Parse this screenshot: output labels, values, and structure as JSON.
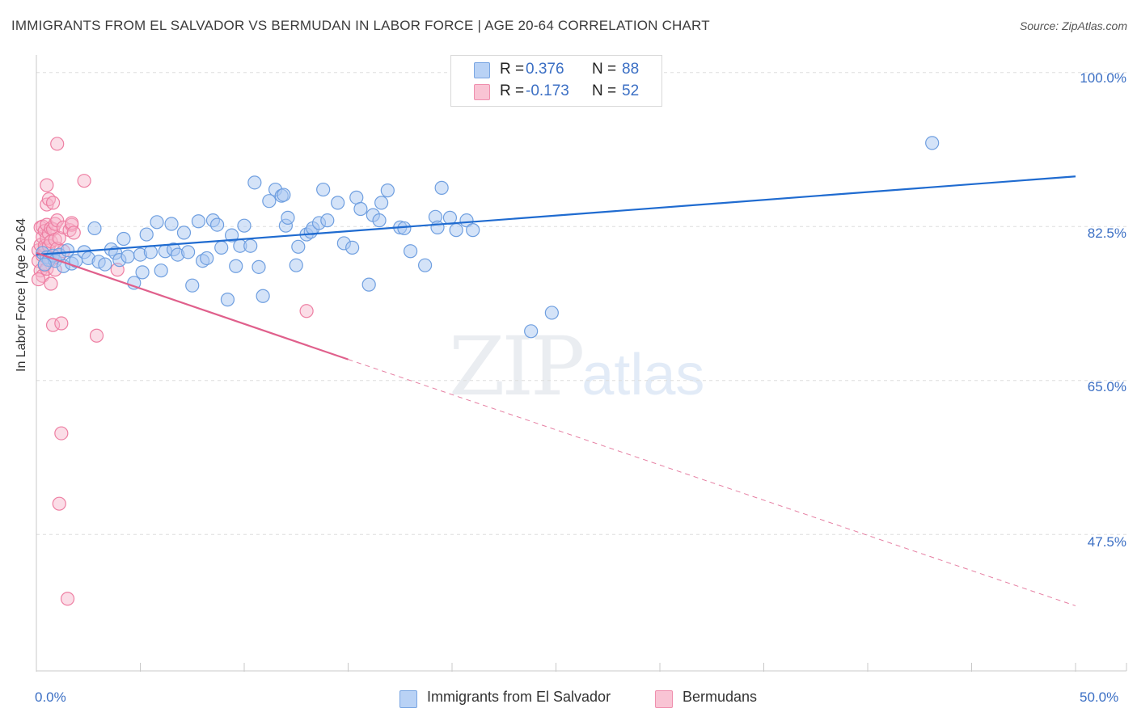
{
  "title": "IMMIGRANTS FROM EL SALVADOR VS BERMUDAN IN LABOR FORCE | AGE 20-64 CORRELATION CHART",
  "source": "Source: ZipAtlas.com",
  "watermark": {
    "zip": "ZIP",
    "atlas": "atlas"
  },
  "legend_top": [
    {
      "r_label": "R =",
      "r_value": "0.376",
      "n_label": "N =",
      "n_value": "88"
    },
    {
      "r_label": "R =",
      "r_value": "-0.173",
      "n_label": "N =",
      "n_value": "52"
    }
  ],
  "legend_bottom": [
    "Immigrants from El Salvador",
    "Bermudans"
  ],
  "colors": {
    "blue_fill": "#a9c8f2",
    "blue_stroke": "#6f9fe0",
    "blue_line": "#1f6bd0",
    "pink_fill": "#f7b4c9",
    "pink_stroke": "#ee7fa3",
    "pink_line": "#e0608c",
    "tick_text": "#3b6fc4",
    "grid": "#dedede"
  },
  "chart_data": {
    "type": "scatter",
    "title": "IMMIGRANTS FROM EL SALVADOR VS BERMUDAN IN LABOR FORCE | AGE 20-64 CORRELATION CHART",
    "xlabel": "",
    "ylabel": "In Labor Force | Age 20-64",
    "xlim": [
      0,
      50
    ],
    "ylim": [
      32,
      102
    ],
    "x_tick_labels": [
      "0.0%",
      "50.0%"
    ],
    "y_ticks": [
      47.5,
      65.0,
      82.5,
      100.0
    ],
    "y_tick_labels": [
      "47.5%",
      "65.0%",
      "82.5%",
      "100.0%"
    ],
    "grid": "horizontal dashed",
    "legend_position": "bottom-center",
    "series": [
      {
        "name": "Immigrants from El Salvador",
        "color": "#a9c8f2",
        "trend": {
          "x": [
            0,
            50
          ],
          "y": [
            79.3,
            88.2
          ]
        },
        "points": [
          [
            0.3,
            79.5
          ],
          [
            0.5,
            79.0
          ],
          [
            0.6,
            78.7
          ],
          [
            0.8,
            79.2
          ],
          [
            0.9,
            78.6
          ],
          [
            1.1,
            79.3
          ],
          [
            1.3,
            78.0
          ],
          [
            1.5,
            79.8
          ],
          [
            1.7,
            78.3
          ],
          [
            1.9,
            78.6
          ],
          [
            2.3,
            79.6
          ],
          [
            2.5,
            78.9
          ],
          [
            2.8,
            82.3
          ],
          [
            3.0,
            78.5
          ],
          [
            3.3,
            78.2
          ],
          [
            3.6,
            79.9
          ],
          [
            3.8,
            79.5
          ],
          [
            4.0,
            78.7
          ],
          [
            4.2,
            81.1
          ],
          [
            4.4,
            79.1
          ],
          [
            4.7,
            76.1
          ],
          [
            5.0,
            79.3
          ],
          [
            5.1,
            77.3
          ],
          [
            5.3,
            81.6
          ],
          [
            5.5,
            79.6
          ],
          [
            5.8,
            83.0
          ],
          [
            6.0,
            77.5
          ],
          [
            6.2,
            79.7
          ],
          [
            6.5,
            82.8
          ],
          [
            6.6,
            79.9
          ],
          [
            6.8,
            79.3
          ],
          [
            7.1,
            81.8
          ],
          [
            7.3,
            79.6
          ],
          [
            7.5,
            75.8
          ],
          [
            7.8,
            83.1
          ],
          [
            8.0,
            78.6
          ],
          [
            8.2,
            78.9
          ],
          [
            8.5,
            83.2
          ],
          [
            8.7,
            82.7
          ],
          [
            8.9,
            80.1
          ],
          [
            9.2,
            74.2
          ],
          [
            9.4,
            81.5
          ],
          [
            9.6,
            78.0
          ],
          [
            9.8,
            80.3
          ],
          [
            10.0,
            82.6
          ],
          [
            10.3,
            80.3
          ],
          [
            10.5,
            87.5
          ],
          [
            10.7,
            77.9
          ],
          [
            10.9,
            74.6
          ],
          [
            11.2,
            85.4
          ],
          [
            11.5,
            86.7
          ],
          [
            11.8,
            86.0
          ],
          [
            11.9,
            86.1
          ],
          [
            12.0,
            82.6
          ],
          [
            12.1,
            83.5
          ],
          [
            12.5,
            78.1
          ],
          [
            12.6,
            80.2
          ],
          [
            13.0,
            81.6
          ],
          [
            13.2,
            81.9
          ],
          [
            13.3,
            82.3
          ],
          [
            13.6,
            82.9
          ],
          [
            13.8,
            86.7
          ],
          [
            14.0,
            83.2
          ],
          [
            14.5,
            85.2
          ],
          [
            14.8,
            80.6
          ],
          [
            15.2,
            80.1
          ],
          [
            15.4,
            85.8
          ],
          [
            15.6,
            84.5
          ],
          [
            16.0,
            75.9
          ],
          [
            16.2,
            83.8
          ],
          [
            16.5,
            83.2
          ],
          [
            16.6,
            85.2
          ],
          [
            16.9,
            86.6
          ],
          [
            17.5,
            82.4
          ],
          [
            17.7,
            82.3
          ],
          [
            18.0,
            79.7
          ],
          [
            18.7,
            78.1
          ],
          [
            19.2,
            83.6
          ],
          [
            19.3,
            82.4
          ],
          [
            19.5,
            86.9
          ],
          [
            19.9,
            83.5
          ],
          [
            20.2,
            82.1
          ],
          [
            20.7,
            83.2
          ],
          [
            21.0,
            82.1
          ],
          [
            23.8,
            70.6
          ],
          [
            24.8,
            72.7
          ],
          [
            43.1,
            92.0
          ],
          [
            0.4,
            78.2
          ]
        ]
      },
      {
        "name": "Bermudans",
        "color": "#f7b4c9",
        "trend": {
          "x": [
            0,
            15
          ],
          "y": [
            79.5,
            67.4
          ],
          "extended": {
            "x": [
              15,
              50
            ],
            "y": [
              67.4,
              39.4
            ]
          }
        },
        "points": [
          [
            0.1,
            79.8
          ],
          [
            0.1,
            78.6
          ],
          [
            0.2,
            80.4
          ],
          [
            0.2,
            77.5
          ],
          [
            0.2,
            82.4
          ],
          [
            0.3,
            79.2
          ],
          [
            0.3,
            81.3
          ],
          [
            0.3,
            76.9
          ],
          [
            0.3,
            82.5
          ],
          [
            0.4,
            79.9
          ],
          [
            0.4,
            80.3
          ],
          [
            0.4,
            82.0
          ],
          [
            0.4,
            78.1
          ],
          [
            0.5,
            81.2
          ],
          [
            0.5,
            82.7
          ],
          [
            0.5,
            77.7
          ],
          [
            0.5,
            85.0
          ],
          [
            0.5,
            87.2
          ],
          [
            0.6,
            80.3
          ],
          [
            0.6,
            81.7
          ],
          [
            0.6,
            85.6
          ],
          [
            0.6,
            79.0
          ],
          [
            0.7,
            82.3
          ],
          [
            0.7,
            78.7
          ],
          [
            0.7,
            76.0
          ],
          [
            0.7,
            80.8
          ],
          [
            0.8,
            82.2
          ],
          [
            0.8,
            71.3
          ],
          [
            0.8,
            85.2
          ],
          [
            0.9,
            81.0
          ],
          [
            0.9,
            82.8
          ],
          [
            0.9,
            77.6
          ],
          [
            1.0,
            91.9
          ],
          [
            1.0,
            80.0
          ],
          [
            1.0,
            83.2
          ],
          [
            1.1,
            81.2
          ],
          [
            1.1,
            79.2
          ],
          [
            1.2,
            71.5
          ],
          [
            1.2,
            59.0
          ],
          [
            1.1,
            51.0
          ],
          [
            1.3,
            82.4
          ],
          [
            1.3,
            79.7
          ],
          [
            1.5,
            40.2
          ],
          [
            1.6,
            82.1
          ],
          [
            1.7,
            82.7
          ],
          [
            1.7,
            82.9
          ],
          [
            1.8,
            81.8
          ],
          [
            2.3,
            87.7
          ],
          [
            2.9,
            70.1
          ],
          [
            3.9,
            77.6
          ],
          [
            13.0,
            72.9
          ],
          [
            0.1,
            76.5
          ]
        ]
      }
    ]
  }
}
